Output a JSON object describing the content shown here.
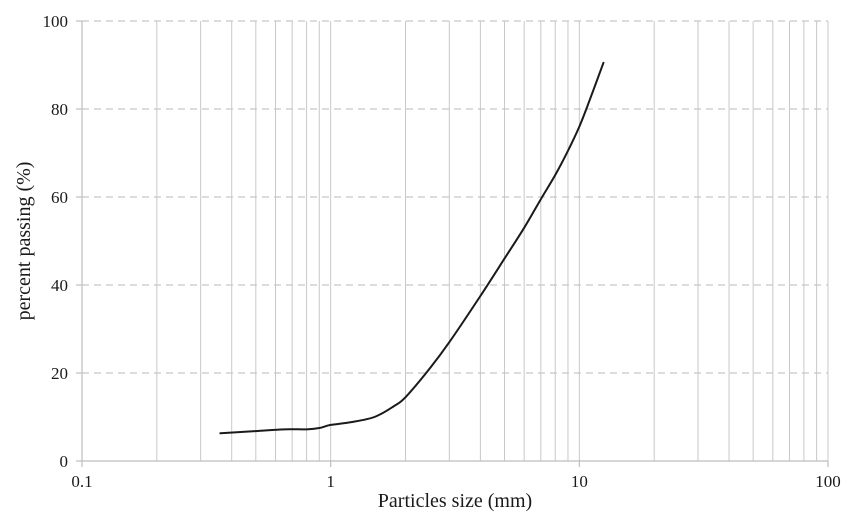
{
  "chart_data": {
    "type": "line",
    "title": "",
    "xlabel": "Particles size (mm)",
    "ylabel": "percent passing (%)",
    "x_scale": "log",
    "xlim": [
      0.1,
      100
    ],
    "ylim": [
      0,
      100
    ],
    "x_ticks": [
      0.1,
      1,
      10,
      100
    ],
    "x_tick_labels": [
      "0.1",
      "1",
      "10",
      "100"
    ],
    "y_ticks": [
      0,
      20,
      40,
      60,
      80,
      100
    ],
    "y_tick_labels": [
      "0",
      "20",
      "40",
      "60",
      "80",
      "100"
    ],
    "grid": {
      "vertical_minor": true,
      "horizontal_major": "dashed"
    },
    "colors": {
      "line": "#1a1a1a",
      "grid": "#c8c8c8",
      "axis": "#bdbdbd"
    },
    "series": [
      {
        "x": [
          0.36,
          0.5,
          0.65,
          0.8,
          0.9,
          1.0,
          1.2,
          1.5,
          1.8,
          2.0,
          2.5,
          3.0,
          4.0,
          5.0,
          6.0,
          7.0,
          8.0,
          9.0,
          10.0,
          11.0,
          12.5
        ],
        "y": [
          6.3,
          6.8,
          7.2,
          7.2,
          7.5,
          8.2,
          8.8,
          10.0,
          12.5,
          14.5,
          21.0,
          27.0,
          37.5,
          46.0,
          53.0,
          59.5,
          65.0,
          70.5,
          76.0,
          82.0,
          90.5
        ]
      }
    ]
  }
}
